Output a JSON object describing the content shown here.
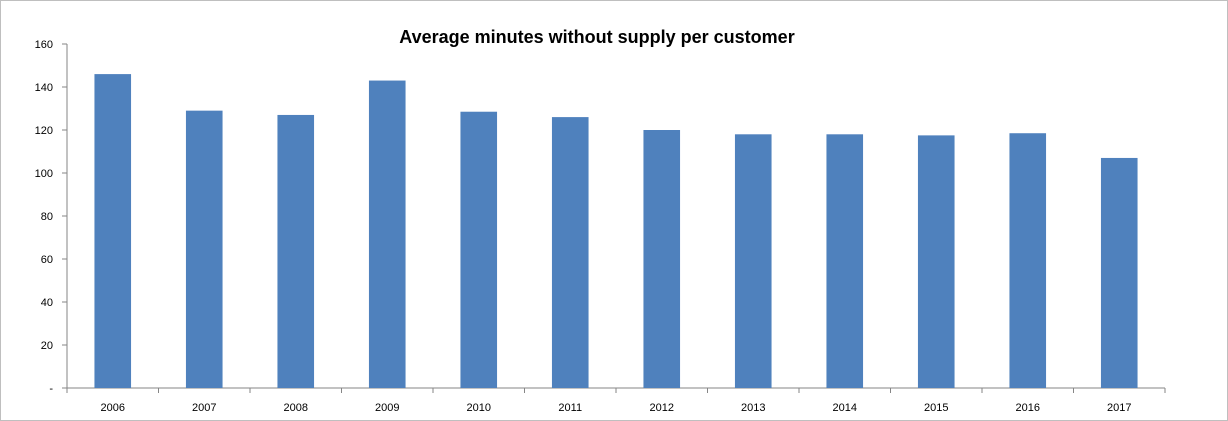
{
  "chart_data": {
    "type": "bar",
    "title": "Average minutes without supply per customer",
    "xlabel": "",
    "ylabel": "",
    "categories": [
      "2006",
      "2007",
      "2008",
      "2009",
      "2010",
      "2011",
      "2012",
      "2013",
      "2014",
      "2015",
      "2016",
      "2017"
    ],
    "series": [
      {
        "values": [
          146,
          129,
          127,
          143,
          128.5,
          126,
          120,
          118,
          118,
          117.5,
          118.5,
          107
        ],
        "color": "#4f81bd"
      }
    ],
    "ylim": [
      0,
      160
    ],
    "yticks": [
      0,
      20,
      40,
      60,
      80,
      100,
      120,
      140,
      160
    ],
    "ytick_labels": [
      "-",
      "20",
      "40",
      "60",
      "80",
      "100",
      "120",
      "140",
      "160"
    ],
    "grid": false,
    "legend": "none"
  }
}
